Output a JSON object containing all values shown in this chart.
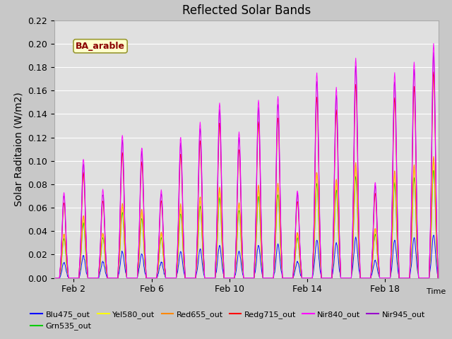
{
  "title": "Reflected Solar Bands",
  "xlabel": "Time",
  "ylabel": "Solar Raditaion (W/m2)",
  "annotation": "BA_arable",
  "ylim": [
    0.0,
    0.22
  ],
  "yticks": [
    0.0,
    0.02,
    0.04,
    0.06,
    0.08,
    0.1,
    0.12,
    0.14,
    0.16,
    0.18,
    0.2,
    0.22
  ],
  "xtick_labels": [
    "Feb 2",
    "Feb 6",
    "Feb 10",
    "Feb 14",
    "Feb 18"
  ],
  "xtick_days": [
    2,
    6,
    10,
    14,
    18
  ],
  "legend_labels": [
    "Blu475_out",
    "Grn535_out",
    "Yel580_out",
    "Red655_out",
    "Redg715_out",
    "Nir840_out",
    "Nir945_out"
  ],
  "legend_colors": [
    "#0000ff",
    "#00cc00",
    "#ffff00",
    "#ff8800",
    "#ff0000",
    "#ff00ff",
    "#9900cc"
  ],
  "fig_facecolor": "#c8c8c8",
  "plot_bg_color": "#e0e0e0",
  "grid_color": "#ffffff",
  "title_fontsize": 12,
  "label_fontsize": 10,
  "day_peak_nir840": [
    0.073,
    0.102,
    0.075,
    0.122,
    0.112,
    0.075,
    0.12,
    0.133,
    0.15,
    0.125,
    0.152,
    0.155,
    0.075,
    0.175,
    0.163,
    0.188,
    0.082,
    0.175,
    0.185,
    0.2
  ],
  "start_day": 1,
  "end_day": 20
}
